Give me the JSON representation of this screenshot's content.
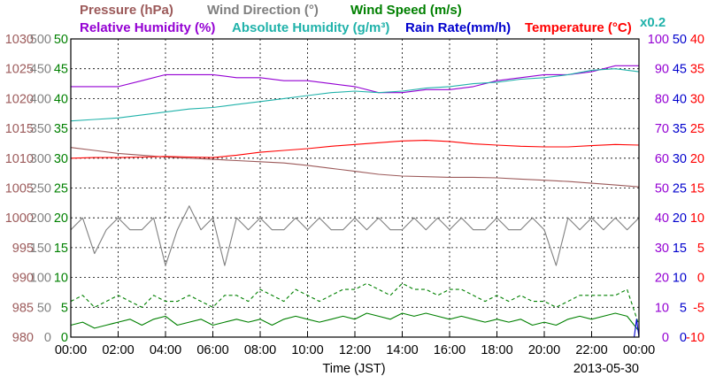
{
  "chart_data": {
    "type": "line",
    "date": "2013-05-30",
    "xlabel": "Time (JST)",
    "x_ticks": [
      "00:00",
      "02:00",
      "04:00",
      "06:00",
      "08:00",
      "10:00",
      "12:00",
      "14:00",
      "16:00",
      "18:00",
      "20:00",
      "22:00",
      "00:00"
    ],
    "x_unit": "hour",
    "x_range": [
      0,
      24
    ],
    "grid": true,
    "scale_note": "x0.2",
    "legend": [
      {
        "label": "Pressure (hPa)",
        "color": "#9c5a5a"
      },
      {
        "label": "Wind Direction (°)",
        "color": "#808080"
      },
      {
        "label": "Wind Speed (m/s)",
        "color": "#008000"
      },
      {
        "label": "Relative Humidity (%)",
        "color": "#9400d3"
      },
      {
        "label": "Absolute Humidity (g/m³)",
        "color": "#20b2aa"
      },
      {
        "label": "Rain Rate(mm/h)",
        "color": "#0000cd"
      },
      {
        "label": "Temperature (°C)",
        "color": "#ff0000"
      }
    ],
    "axes": [
      {
        "name": "pressure",
        "unit": "hPa",
        "color": "#9c5a5a",
        "range": [
          980,
          1030
        ],
        "ticks": [
          "980",
          "985",
          "990",
          "995",
          "1000",
          "1005",
          "1010",
          "1015",
          "1020",
          "1025",
          "1030"
        ]
      },
      {
        "name": "wind_direction",
        "unit": "°",
        "color": "#808080",
        "range": [
          0,
          500
        ],
        "ticks": [
          "0",
          "50",
          "100",
          "150",
          "200",
          "250",
          "300",
          "350",
          "400",
          "450",
          "500"
        ]
      },
      {
        "name": "wind_speed",
        "unit": "m/s",
        "color": "#008000",
        "range": [
          0,
          50
        ],
        "ticks": [
          "0",
          "5",
          "10",
          "15",
          "20",
          "25",
          "30",
          "35",
          "40",
          "45",
          "50"
        ]
      },
      {
        "name": "relative_humidity",
        "unit": "%",
        "color": "#9400d3",
        "range": [
          0,
          100
        ],
        "ticks": [
          "0",
          "10",
          "20",
          "30",
          "40",
          "50",
          "60",
          "70",
          "80",
          "90",
          "100"
        ]
      },
      {
        "name": "rain_rate",
        "unit": "mm/h",
        "color": "#0000cd",
        "range": [
          0,
          50
        ],
        "ticks": [
          "0",
          "5",
          "10",
          "15",
          "20",
          "25",
          "30",
          "35",
          "40",
          "45",
          "50"
        ]
      },
      {
        "name": "temperature",
        "unit": "°C",
        "color": "#ff0000",
        "range": [
          -10,
          40
        ],
        "ticks": [
          "-10",
          "-5",
          "0",
          "5",
          "10",
          "15",
          "20",
          "25",
          "30",
          "35",
          "40"
        ]
      }
    ],
    "series": [
      {
        "name": "Pressure (hPa)",
        "axis": "pressure",
        "color": "#9c5a5a",
        "style": "solid",
        "x": [
          0,
          1,
          2,
          3,
          4,
          5,
          6,
          7,
          8,
          9,
          10,
          11,
          12,
          13,
          14,
          15,
          16,
          17,
          18,
          19,
          20,
          21,
          22,
          23,
          24
        ],
        "y": [
          1011.8,
          1011.3,
          1010.8,
          1010.5,
          1010.2,
          1010.0,
          1009.8,
          1009.6,
          1009.4,
          1009.2,
          1008.8,
          1008.3,
          1007.8,
          1007.3,
          1007.0,
          1006.9,
          1006.8,
          1006.8,
          1006.7,
          1006.5,
          1006.3,
          1006.1,
          1005.8,
          1005.5,
          1005.2
        ]
      },
      {
        "name": "Temperature (°C)",
        "axis": "temperature",
        "color": "#ff0000",
        "style": "solid",
        "x": [
          0,
          1,
          2,
          3,
          4,
          5,
          6,
          7,
          8,
          9,
          10,
          11,
          12,
          13,
          14,
          15,
          16,
          17,
          18,
          19,
          20,
          21,
          22,
          23,
          24
        ],
        "y": [
          20.0,
          20.1,
          20.1,
          20.2,
          20.3,
          20.2,
          20.1,
          20.5,
          21.0,
          21.3,
          21.6,
          22.0,
          22.3,
          22.6,
          22.9,
          23.0,
          22.8,
          22.4,
          22.2,
          22.0,
          21.9,
          21.9,
          22.1,
          22.3,
          22.2
        ]
      },
      {
        "name": "Relative Humidity (%)",
        "axis": "relative_humidity",
        "color": "#9400d3",
        "style": "solid",
        "x": [
          0,
          1,
          2,
          3,
          4,
          5,
          6,
          7,
          8,
          9,
          10,
          11,
          12,
          13,
          14,
          15,
          16,
          17,
          18,
          19,
          20,
          21,
          22,
          23,
          24
        ],
        "y": [
          84,
          84,
          84,
          86,
          88,
          88,
          88,
          87,
          87,
          86,
          86,
          85,
          84,
          82,
          82,
          83,
          83,
          84,
          86,
          87,
          88,
          88,
          89,
          91,
          91
        ]
      },
      {
        "name": "Absolute Humidity (g/m³)",
        "axis": "relative_humidity",
        "color": "#20b2aa",
        "style": "solid",
        "x": [
          0,
          1,
          2,
          3,
          4,
          5,
          6,
          7,
          8,
          9,
          10,
          11,
          12,
          13,
          14,
          15,
          16,
          17,
          18,
          19,
          20,
          21,
          22,
          23,
          24
        ],
        "y": [
          72.5,
          73,
          73.5,
          74.5,
          75.5,
          76.5,
          77,
          78,
          79,
          80,
          81,
          82,
          82.5,
          82,
          82.5,
          83.5,
          84,
          85,
          85.5,
          86.5,
          87,
          88,
          89.5,
          90,
          89
        ]
      },
      {
        "name": "Wind Direction (°)",
        "axis": "wind_direction",
        "color": "#808080",
        "style": "solid",
        "x": [
          0,
          0.5,
          1,
          1.5,
          2,
          2.5,
          3,
          3.5,
          4,
          4.5,
          5,
          5.5,
          6,
          6.5,
          7,
          7.5,
          8,
          8.5,
          9,
          9.5,
          10,
          10.5,
          11,
          11.5,
          12,
          12.5,
          13,
          13.5,
          14,
          14.5,
          15,
          15.5,
          16,
          16.5,
          17,
          17.5,
          18,
          18.5,
          19,
          19.5,
          20,
          20.5,
          21,
          21.5,
          22,
          22.5,
          23,
          23.5,
          24
        ],
        "y": [
          180,
          200,
          140,
          180,
          200,
          180,
          180,
          200,
          120,
          180,
          220,
          180,
          200,
          120,
          200,
          180,
          200,
          180,
          180,
          200,
          180,
          200,
          180,
          180,
          200,
          180,
          200,
          180,
          180,
          200,
          180,
          200,
          180,
          200,
          180,
          180,
          200,
          180,
          180,
          200,
          180,
          120,
          200,
          180,
          200,
          180,
          200,
          180,
          200
        ]
      },
      {
        "name": "Wind Speed (m/s)",
        "axis": "wind_speed",
        "color": "#008000",
        "style": "solid",
        "x": [
          0,
          0.5,
          1,
          1.5,
          2,
          2.5,
          3,
          3.5,
          4,
          4.5,
          5,
          5.5,
          6,
          6.5,
          7,
          7.5,
          8,
          8.5,
          9,
          9.5,
          10,
          10.5,
          11,
          11.5,
          12,
          12.5,
          13,
          13.5,
          14,
          14.5,
          15,
          15.5,
          16,
          16.5,
          17,
          17.5,
          18,
          18.5,
          19,
          19.5,
          20,
          20.5,
          21,
          21.5,
          22,
          22.5,
          23,
          23.5,
          24
        ],
        "y": [
          2,
          2.5,
          1.5,
          2,
          2.5,
          3,
          2,
          3,
          3.5,
          2,
          2.5,
          3,
          2,
          2.5,
          3,
          2.5,
          3,
          2,
          3,
          3.5,
          3,
          2.5,
          3,
          3.5,
          3,
          4,
          3.5,
          3,
          4,
          3.5,
          4,
          3.5,
          3,
          3.5,
          3,
          2.5,
          3,
          2.5,
          3,
          2,
          2.5,
          2,
          3,
          3.5,
          3,
          3.5,
          4,
          3.5,
          1
        ]
      },
      {
        "name": "Wind Speed Max (m/s)",
        "axis": "wind_speed",
        "color": "#008000",
        "style": "dashed",
        "x": [
          0,
          0.5,
          1,
          1.5,
          2,
          2.5,
          3,
          3.5,
          4,
          4.5,
          5,
          5.5,
          6,
          6.5,
          7,
          7.5,
          8,
          8.5,
          9,
          9.5,
          10,
          10.5,
          11,
          11.5,
          12,
          12.5,
          13,
          13.5,
          14,
          14.5,
          15,
          15.5,
          16,
          16.5,
          17,
          17.5,
          18,
          18.5,
          19,
          19.5,
          20,
          20.5,
          21,
          21.5,
          22,
          22.5,
          23,
          23.5,
          24
        ],
        "y": [
          6,
          7,
          5,
          6,
          7,
          6,
          5,
          7,
          6,
          6,
          7,
          6,
          5,
          7,
          7,
          6,
          8,
          7,
          6,
          8,
          7,
          6,
          7,
          8,
          8,
          9,
          8,
          7,
          9,
          8,
          8,
          7,
          8,
          8,
          7,
          6,
          7,
          6,
          7,
          6,
          6,
          5,
          6,
          7,
          7,
          7,
          7,
          8,
          2
        ]
      },
      {
        "name": "Rain Rate(mm/h)",
        "axis": "rain_rate",
        "color": "#0000cd",
        "style": "solid",
        "x": [
          0,
          23.8,
          23.9,
          24
        ],
        "y": [
          0,
          0,
          3,
          0
        ]
      }
    ]
  }
}
